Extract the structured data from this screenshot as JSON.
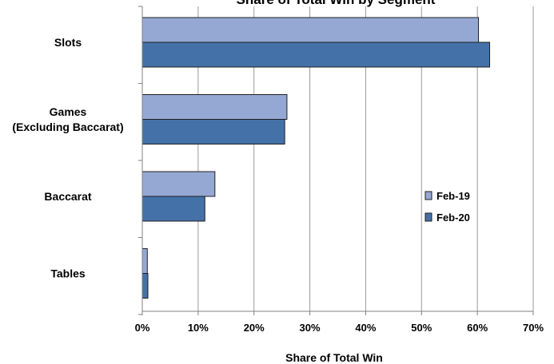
{
  "chart_data": {
    "type": "bar",
    "orientation": "horizontal",
    "title": "Share of Total Win by Segment",
    "xlabel": "Share of Total Win",
    "ylabel": "",
    "categories": [
      "Slots",
      "Games\n(Excluding Baccarat)",
      "Baccarat",
      "Tables"
    ],
    "series": [
      {
        "name": "Feb-19",
        "color": "#95a8d4",
        "values": [
          60.2,
          25.9,
          13.0,
          0.9
        ]
      },
      {
        "name": "Feb-20",
        "color": "#4472a8",
        "values": [
          62.2,
          25.5,
          11.2,
          1.0
        ]
      }
    ],
    "xlim": [
      0,
      70
    ],
    "ticks": [
      0,
      10,
      20,
      30,
      40,
      50,
      60,
      70
    ],
    "tick_format": "%",
    "grid": "vertical",
    "legend": "right"
  }
}
